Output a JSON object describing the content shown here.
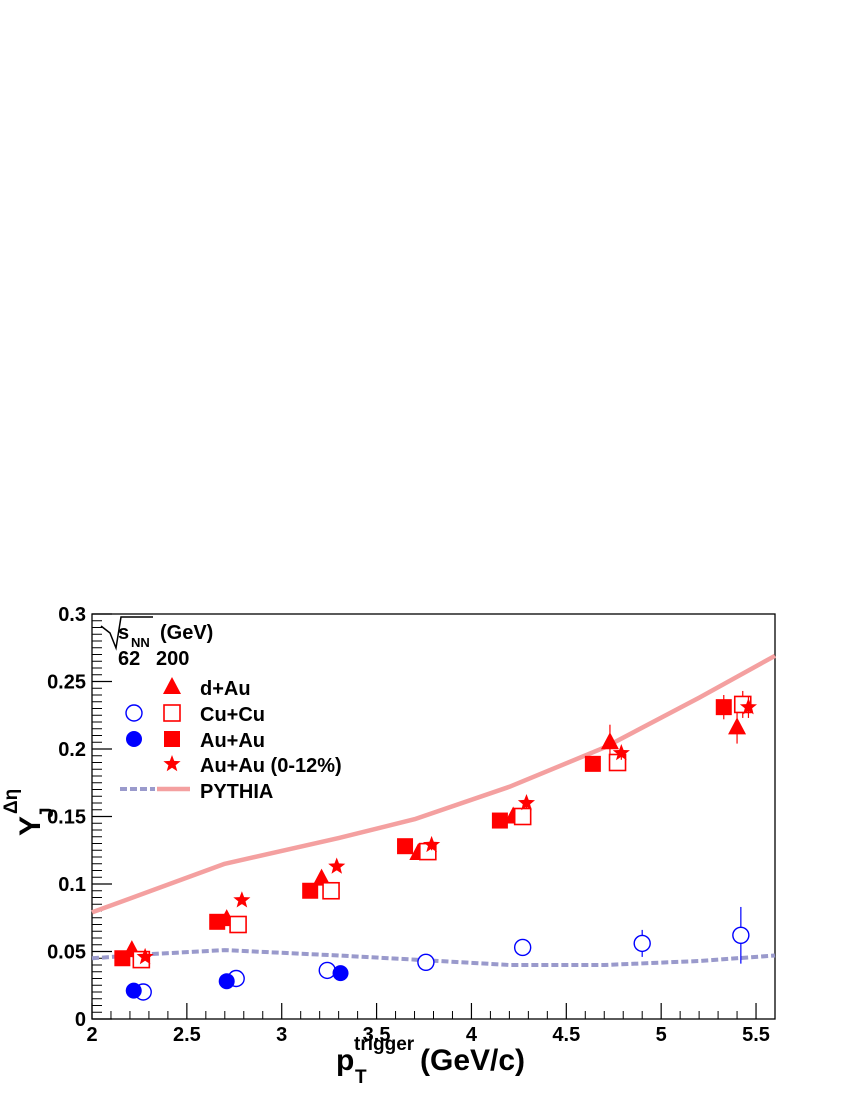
{
  "chart_data": {
    "type": "scatter",
    "xlabel": {
      "main": "p",
      "sub": "T",
      "sup": "trigger",
      "unit": "(GeV/c)"
    },
    "ylabel": {
      "main": "Y",
      "sub": "J",
      "sup": "Δη"
    },
    "xlim": [
      2,
      5.6
    ],
    "ylim": [
      0,
      0.3
    ],
    "x_ticks": [
      "2",
      "2.5",
      "3",
      "3.5",
      "4",
      "4.5",
      "5",
      "5.5"
    ],
    "y_ticks": [
      "0",
      "0.05",
      "0.1",
      "0.15",
      "0.2",
      "0.25",
      "0.3"
    ],
    "grid": false,
    "legend": {
      "placement": "top-left",
      "header": "(GeV)",
      "sqrt_label": "s",
      "sqrt_sub": "NN",
      "col_62": "62",
      "col_200": "200",
      "entries": [
        "d+Au",
        "Cu+Cu",
        "Au+Au",
        "Au+Au (0-12%)",
        "PYTHIA"
      ]
    },
    "series": [
      {
        "name": "d+Au",
        "energy": "200",
        "marker": "triangle",
        "filled": true,
        "color": "#ff0000",
        "x": [
          2.21,
          2.71,
          3.21,
          3.72,
          4.22,
          4.73,
          5.4
        ],
        "y": [
          0.051,
          0.074,
          0.104,
          0.123,
          0.15,
          0.205,
          0.216
        ],
        "err": [
          0.003,
          0.003,
          0.004,
          0.004,
          0.005,
          0.013,
          0.012
        ]
      },
      {
        "name": "Cu+Cu",
        "energy": "62",
        "marker": "circle",
        "filled": false,
        "color": "#0000ff",
        "x": [
          2.27,
          2.76,
          3.24,
          3.76,
          4.27,
          4.9,
          5.42
        ],
        "y": [
          0.02,
          0.03,
          0.036,
          0.042,
          0.053,
          0.056,
          0.062
        ],
        "err": [
          0.002,
          0.003,
          0.003,
          0.004,
          0.005,
          0.01,
          0.021
        ]
      },
      {
        "name": "Cu+Cu",
        "energy": "200",
        "marker": "square",
        "filled": false,
        "color": "#ff0000",
        "x": [
          2.26,
          2.77,
          3.26,
          3.77,
          4.27,
          4.77,
          5.43
        ],
        "y": [
          0.044,
          0.07,
          0.095,
          0.124,
          0.15,
          0.19,
          0.233
        ],
        "err": [
          0.003,
          0.003,
          0.004,
          0.004,
          0.005,
          0.006,
          0.01
        ]
      },
      {
        "name": "Au+Au",
        "energy": "62",
        "marker": "circle",
        "filled": true,
        "color": "#0000ff",
        "x": [
          2.22,
          2.71,
          3.31
        ],
        "y": [
          0.021,
          0.028,
          0.034
        ],
        "err": [
          0.002,
          0.002,
          0.002
        ]
      },
      {
        "name": "Au+Au",
        "energy": "200",
        "marker": "square",
        "filled": true,
        "color": "#ff0000",
        "x": [
          2.16,
          2.66,
          3.15,
          3.65,
          4.15,
          4.64,
          5.33
        ],
        "y": [
          0.045,
          0.072,
          0.095,
          0.128,
          0.147,
          0.189,
          0.231
        ],
        "err": [
          0.002,
          0.003,
          0.003,
          0.004,
          0.004,
          0.005,
          0.009
        ]
      },
      {
        "name": "Au+Au (0-12%)",
        "energy": "200",
        "marker": "star",
        "filled": true,
        "color": "#ff0000",
        "x": [
          2.28,
          2.79,
          3.29,
          3.79,
          4.29,
          4.79,
          5.46
        ],
        "y": [
          0.046,
          0.088,
          0.113,
          0.129,
          0.16,
          0.197,
          0.231
        ],
        "err": [
          0.002,
          0.003,
          0.003,
          0.004,
          0.004,
          0.005,
          0.008
        ]
      }
    ],
    "curves": [
      {
        "name": "PYTHIA",
        "energy": "200",
        "style": "solid",
        "color": "#f4a0a0",
        "x": [
          2.0,
          2.7,
          3.3,
          3.7,
          4.2,
          4.7,
          5.2,
          5.6
        ],
        "y": [
          0.079,
          0.115,
          0.134,
          0.148,
          0.172,
          0.201,
          0.238,
          0.269
        ]
      },
      {
        "name": "PYTHIA",
        "energy": "62",
        "style": "dashed",
        "color": "#9a9acc",
        "x": [
          2.0,
          2.3,
          2.7,
          3.3,
          3.7,
          4.2,
          4.7,
          5.2,
          5.6
        ],
        "y": [
          0.045,
          0.048,
          0.051,
          0.047,
          0.044,
          0.04,
          0.04,
          0.043,
          0.047
        ]
      }
    ]
  }
}
